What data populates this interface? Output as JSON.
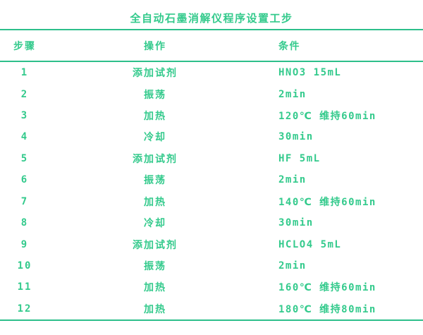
{
  "title": "全自动石墨消解仪程序设置工步",
  "colors": {
    "text_green": "#33ca8c",
    "line_green": "#2dbf8b",
    "background": "#ffffff"
  },
  "table": {
    "columns": [
      "步骤",
      "操作",
      "条件"
    ],
    "rows": [
      {
        "step": "1",
        "operation": "添加试剂",
        "condition": "HNO3 15mL"
      },
      {
        "step": "2",
        "operation": "振荡",
        "condition": "2min"
      },
      {
        "step": "3",
        "operation": "加热",
        "condition": "120℃ 维持60min"
      },
      {
        "step": "4",
        "operation": "冷却",
        "condition": "30min"
      },
      {
        "step": "5",
        "operation": "添加试剂",
        "condition": "HF 5mL"
      },
      {
        "step": "6",
        "operation": "振荡",
        "condition": "2min"
      },
      {
        "step": "7",
        "operation": "加热",
        "condition": "140℃ 维持60min"
      },
      {
        "step": "8",
        "operation": "冷却",
        "condition": "30min"
      },
      {
        "step": "9",
        "operation": "添加试剂",
        "condition": "HCLO4 5mL"
      },
      {
        "step": "10",
        "operation": "振荡",
        "condition": "2min"
      },
      {
        "step": "11",
        "operation": "加热",
        "condition": "160℃ 维持60min"
      },
      {
        "step": "12",
        "operation": "加热",
        "condition": "180℃ 维持80min"
      }
    ]
  }
}
